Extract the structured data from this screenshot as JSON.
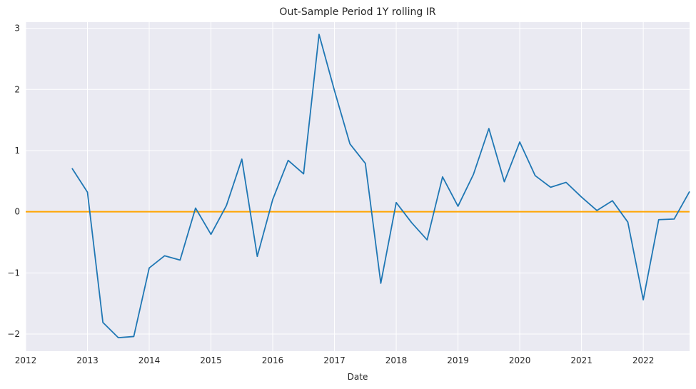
{
  "chart_data": {
    "type": "line",
    "title": "Out-Sample Period 1Y rolling IR",
    "xlabel": "Date",
    "ylabel": "",
    "x_ticks": [
      "2012",
      "2013",
      "2014",
      "2015",
      "2016",
      "2017",
      "2018",
      "2019",
      "2020",
      "2021",
      "2022"
    ],
    "y_ticks": [
      -2,
      -1,
      0,
      1,
      2,
      3
    ],
    "xlim": [
      "2012-01-01",
      "2022-10-01"
    ],
    "ylim": [
      -2.28,
      3.1
    ],
    "grid": true,
    "background": "#eaeaf2",
    "series": [
      {
        "color": "#1f77b4",
        "x": [
          "2012-10-01",
          "2013-01-01",
          "2013-04-01",
          "2013-07-01",
          "2013-10-01",
          "2014-01-01",
          "2014-04-01",
          "2014-07-01",
          "2014-10-01",
          "2015-01-01",
          "2015-04-01",
          "2015-07-01",
          "2015-10-01",
          "2016-01-01",
          "2016-04-01",
          "2016-07-01",
          "2016-10-01",
          "2017-01-01",
          "2017-04-01",
          "2017-07-01",
          "2017-10-01",
          "2018-01-01",
          "2018-04-01",
          "2018-07-01",
          "2018-10-01",
          "2019-01-01",
          "2019-04-01",
          "2019-07-01",
          "2019-10-01",
          "2020-01-01",
          "2020-04-01",
          "2020-07-01",
          "2020-10-01",
          "2021-01-01",
          "2021-04-01",
          "2021-07-01",
          "2021-10-01",
          "2022-01-01",
          "2022-04-01",
          "2022-07-01",
          "2022-10-01"
        ],
        "values": [
          0.71,
          0.32,
          -1.81,
          -2.06,
          -2.04,
          -0.92,
          -0.72,
          -0.79,
          0.06,
          -0.37,
          0.1,
          0.86,
          -0.73,
          0.2,
          0.84,
          0.62,
          2.9,
          1.98,
          1.11,
          0.79,
          -1.17,
          0.15,
          -0.18,
          -0.46,
          0.57,
          0.09,
          0.61,
          1.36,
          0.49,
          1.14,
          0.59,
          0.4,
          0.48,
          0.24,
          0.02,
          0.18,
          -0.17,
          -1.44,
          -0.13,
          -0.12,
          0.33
        ]
      }
    ],
    "reference_lines": [
      {
        "y": 0,
        "color": "#ffa500"
      }
    ]
  }
}
